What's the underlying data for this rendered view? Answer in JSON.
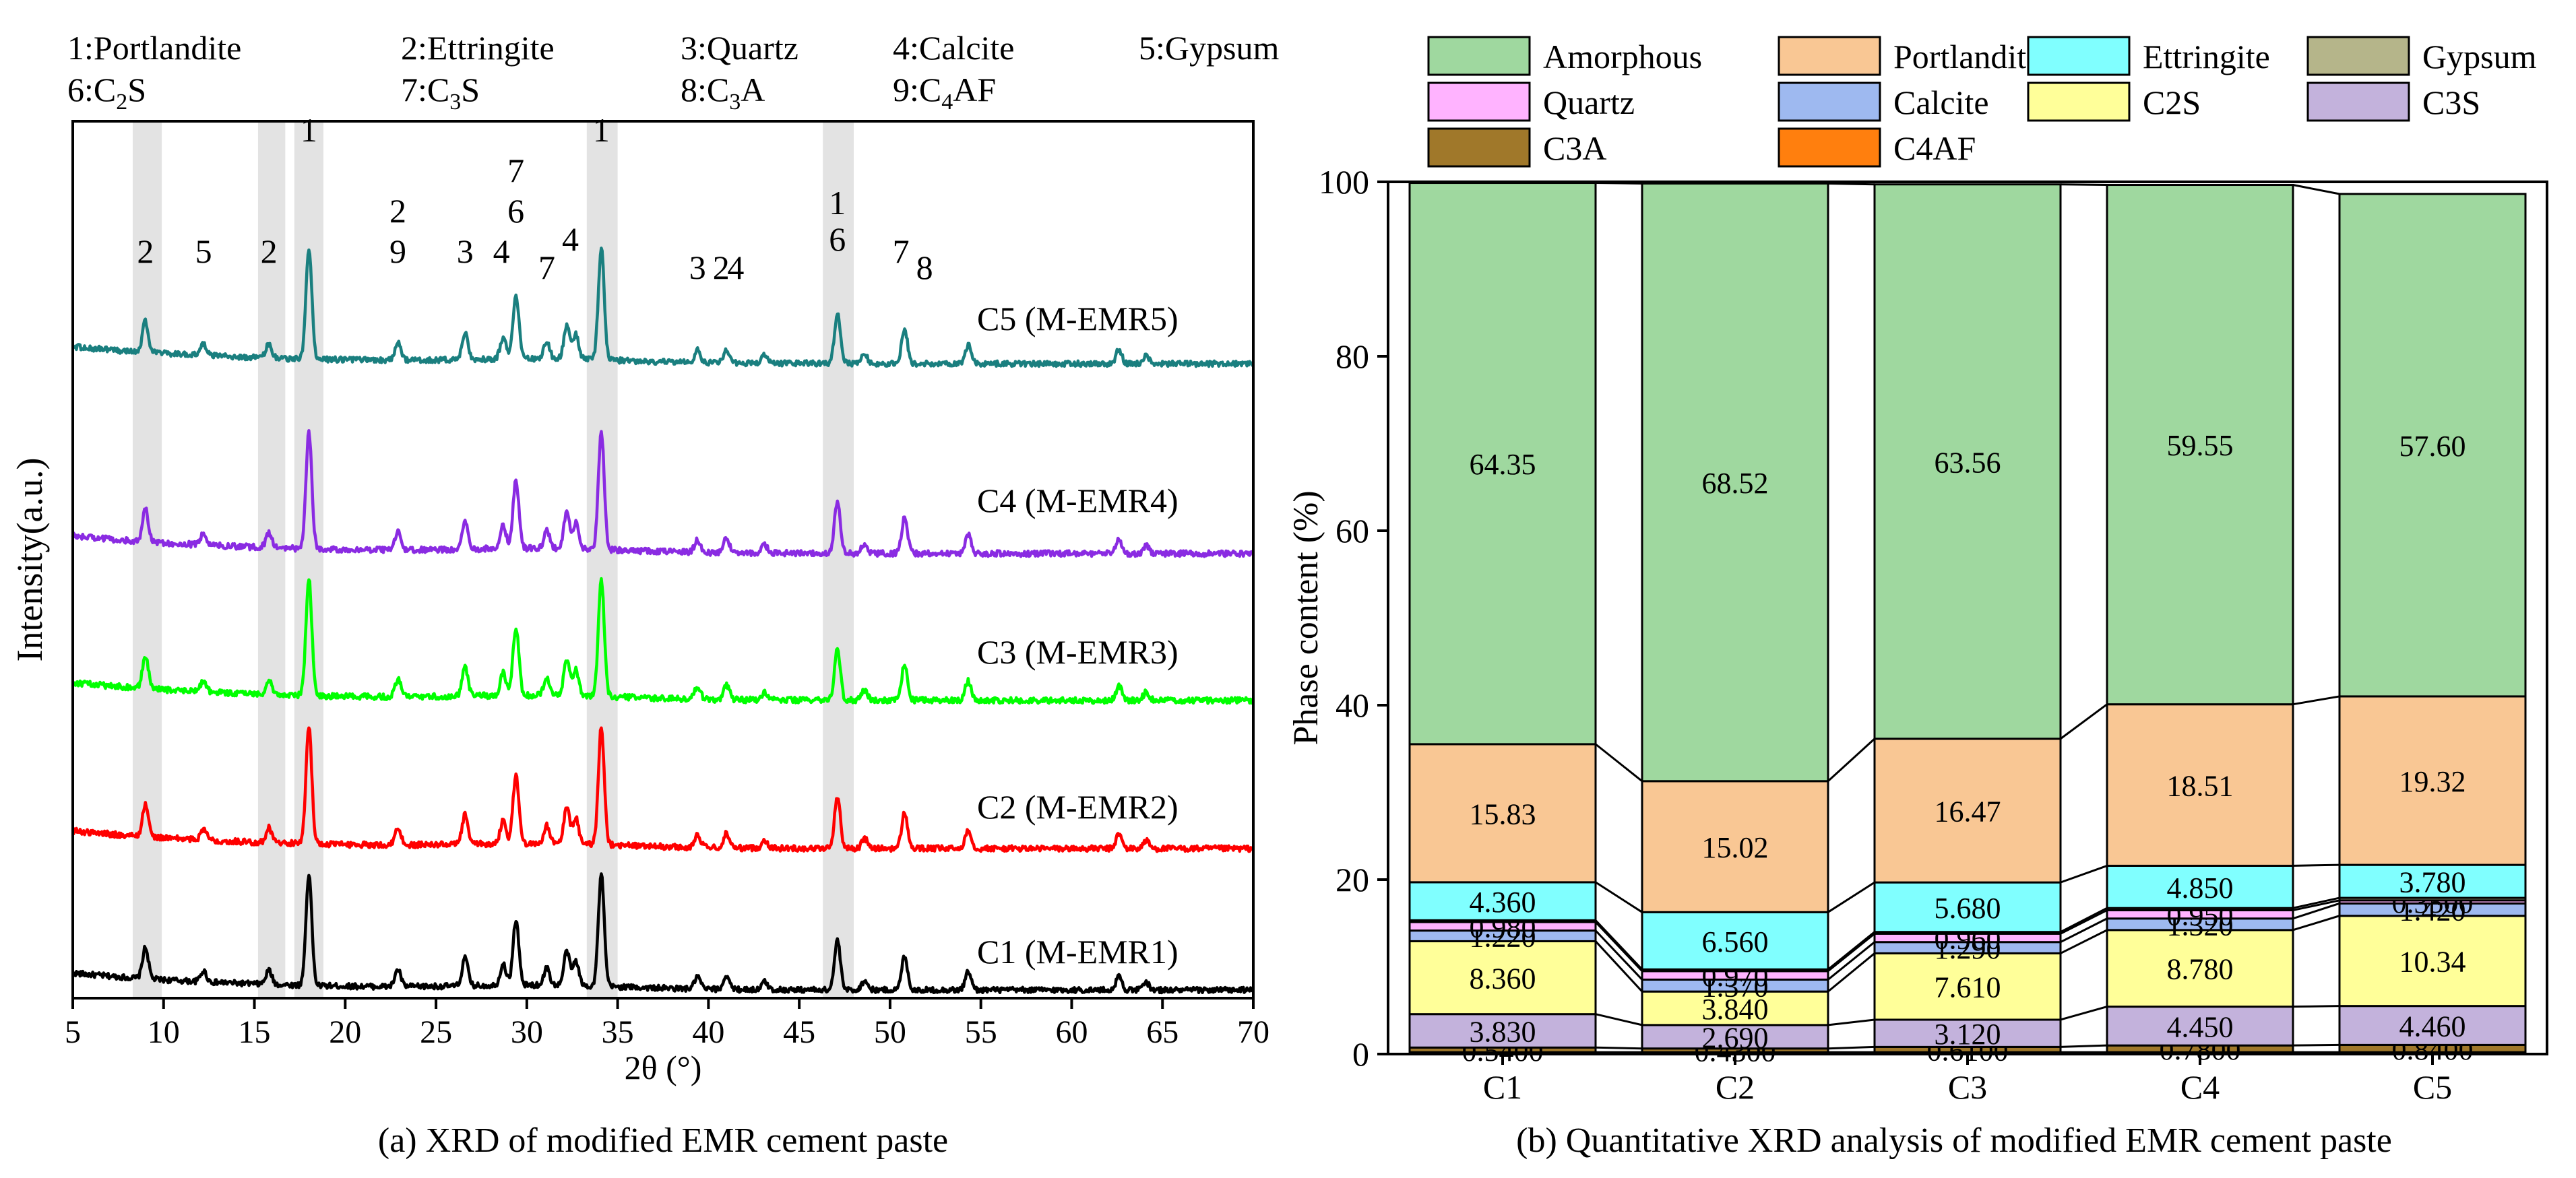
{
  "chart_data": [
    {
      "type": "line",
      "caption": "(a) XRD of modified EMR cement paste",
      "xlabel": "2θ (°)",
      "ylabel": "Intensity(a.u.)",
      "xlim": [
        5,
        70
      ],
      "xticks": [
        5,
        10,
        15,
        20,
        25,
        30,
        35,
        40,
        45,
        50,
        55,
        60,
        65,
        70
      ],
      "phase_legend": [
        {
          "num": "1",
          "sep": ":",
          "name": "Portlandite",
          "sub": "",
          "rest": ""
        },
        {
          "num": "2",
          "sep": ":",
          "name": "Ettringite",
          "sub": "",
          "rest": ""
        },
        {
          "num": "3",
          "sep": ":",
          "name": "Quartz",
          "sub": "",
          "rest": ""
        },
        {
          "num": "4",
          "sep": ":",
          "name": "Calcite",
          "sub": "",
          "rest": ""
        },
        {
          "num": "5",
          "sep": ":",
          "name": "Gypsum",
          "sub": "",
          "rest": ""
        },
        {
          "num": "6",
          "sep": ":",
          "name": "C",
          "sub": "2",
          "rest": "S"
        },
        {
          "num": "7",
          "sep": ":",
          "name": "C",
          "sub": "3",
          "rest": "S"
        },
        {
          "num": "8",
          "sep": ":",
          "name": "C",
          "sub": "3",
          "rest": "A"
        },
        {
          "num": "9",
          "sep": ":",
          "name": "C",
          "sub": "4",
          "rest": "AF"
        }
      ],
      "highlight_bands": [
        [
          8.3,
          9.9
        ],
        [
          15.2,
          16.7
        ],
        [
          17.2,
          18.8
        ],
        [
          33.3,
          35.0
        ],
        [
          46.3,
          48.0
        ]
      ],
      "peaks": [
        {
          "pos": 9.0,
          "h": 1.0
        },
        {
          "pos": 12.2,
          "h": 0.35
        },
        {
          "pos": 15.8,
          "h": 0.45
        },
        {
          "pos": 18.0,
          "h": 3.6
        },
        {
          "pos": 22.9,
          "h": 0.55
        },
        {
          "pos": 26.6,
          "h": 0.9
        },
        {
          "pos": 28.7,
          "h": 0.7
        },
        {
          "pos": 29.4,
          "h": 2.1
        },
        {
          "pos": 31.1,
          "h": 0.55
        },
        {
          "pos": 32.2,
          "h": 1.1
        },
        {
          "pos": 32.7,
          "h": 0.8
        },
        {
          "pos": 34.1,
          "h": 3.6
        },
        {
          "pos": 39.4,
          "h": 0.4
        },
        {
          "pos": 41.0,
          "h": 0.45
        },
        {
          "pos": 43.1,
          "h": 0.25
        },
        {
          "pos": 47.1,
          "h": 1.6
        },
        {
          "pos": 48.6,
          "h": 0.3
        },
        {
          "pos": 50.8,
          "h": 1.1
        },
        {
          "pos": 54.3,
          "h": 0.6
        },
        {
          "pos": 62.6,
          "h": 0.45
        },
        {
          "pos": 64.1,
          "h": 0.25
        }
      ],
      "series": [
        {
          "name": "C1 (M-EMR1)",
          "color": "#000000"
        },
        {
          "name": "C2 (M-EMR2)",
          "color": "#ff0000"
        },
        {
          "name": "C3 (M-EMR3)",
          "color": "#00ff00"
        },
        {
          "name": "C4 (M-EMR4)",
          "color": "#8a2be2"
        },
        {
          "name": "C5 (M-EMR5)",
          "color": "#1a7f7f"
        }
      ],
      "annotations": [
        {
          "text": "2",
          "x": 9.0,
          "tier": 1
        },
        {
          "text": "5",
          "x": 12.2,
          "tier": 1
        },
        {
          "text": "2",
          "x": 15.8,
          "tier": 1
        },
        {
          "text": "1",
          "x": 18.0,
          "tier": 4
        },
        {
          "text": "2",
          "x": 22.9,
          "tier": 2
        },
        {
          "text": "9",
          "x": 22.9,
          "tier": 1
        },
        {
          "text": "3",
          "x": 26.6,
          "tier": 1
        },
        {
          "text": "4",
          "x": 28.6,
          "tier": 1
        },
        {
          "text": "7",
          "x": 29.4,
          "tier": 3
        },
        {
          "text": "6",
          "x": 29.4,
          "tier": 2
        },
        {
          "text": "7",
          "x": 31.1,
          "tier": 0.6
        },
        {
          "text": "4",
          "x": 32.4,
          "tier": 1.3
        },
        {
          "text": "1",
          "x": 34.1,
          "tier": 4
        },
        {
          "text": "3",
          "x": 39.4,
          "tier": 0.6
        },
        {
          "text": "2",
          "x": 40.7,
          "tier": 0.6
        },
        {
          "text": "4",
          "x": 41.5,
          "tier": 0.6
        },
        {
          "text": "1",
          "x": 47.1,
          "tier": 2.2
        },
        {
          "text": "6",
          "x": 47.1,
          "tier": 1.3
        },
        {
          "text": "7",
          "x": 50.6,
          "tier": 1.0
        },
        {
          "text": "8",
          "x": 51.9,
          "tier": 0.6
        }
      ]
    },
    {
      "type": "bar",
      "stacked": true,
      "caption": "(b) Quantitative XRD analysis of modified EMR cement paste",
      "ylabel": "Phase content (%)",
      "ylim": [
        0,
        100
      ],
      "yticks": [
        0,
        20,
        40,
        60,
        80,
        100
      ],
      "categories": [
        "C1",
        "C2",
        "C3",
        "C4",
        "C5"
      ],
      "series": [
        {
          "name": "C4AF",
          "color": "#ff7f0e",
          "values": [
            0.21,
            0.21,
            0.21,
            0.21,
            0.21
          ],
          "labels": [
            "",
            "",
            "",
            "",
            ""
          ]
        },
        {
          "name": "C3A",
          "color": "#a0782a",
          "values": [
            0.54,
            0.43,
            0.61,
            0.78,
            0.84
          ],
          "labels": [
            "0.5400",
            "0.4300",
            "0.6100",
            "0.7800",
            "0.8400"
          ]
        },
        {
          "name": "C3S",
          "color": "#c3b2dc",
          "values": [
            3.83,
            2.69,
            3.12,
            4.45,
            4.46
          ],
          "labels": [
            "3.830",
            "2.690",
            "3.120",
            "4.450",
            "4.460"
          ]
        },
        {
          "name": "C2S",
          "color": "#ffff99",
          "values": [
            8.36,
            3.84,
            7.61,
            8.78,
            10.34
          ],
          "labels": [
            "8.360",
            "3.840",
            "7.610",
            "8.780",
            "10.34"
          ]
        },
        {
          "name": "Calcite",
          "color": "#9eb9f0",
          "values": [
            1.22,
            1.37,
            1.29,
            1.32,
            1.42
          ],
          "labels": [
            "1.220",
            "1.370",
            "1.290",
            "1.320",
            "1.420"
          ]
        },
        {
          "name": "Quartz",
          "color": "#ffb3ff",
          "values": [
            0.98,
            0.97,
            0.96,
            0.95,
            0.35
          ],
          "labels": [
            "0.980",
            "0.970",
            "0.960",
            "0.950",
            "0.3500"
          ]
        },
        {
          "name": "Gypsum",
          "color": "#b5b58a",
          "values": [
            0.2,
            0.2,
            0.2,
            0.25,
            0.29
          ],
          "labels": [
            "",
            "",
            "",
            "",
            ""
          ]
        },
        {
          "name": "Ettringite",
          "color": "#80ffff",
          "values": [
            4.36,
            6.56,
            5.68,
            4.85,
            3.78
          ],
          "labels": [
            "4.360",
            "6.560",
            "5.680",
            "4.850",
            "3.780"
          ]
        },
        {
          "name": "Portlandite",
          "color": "#f9c794",
          "values": [
            15.83,
            15.02,
            16.47,
            18.51,
            19.32
          ],
          "labels": [
            "15.83",
            "15.02",
            "16.47",
            "18.51",
            "19.32"
          ]
        },
        {
          "name": "Amorphous",
          "color": "#9fd89f",
          "values": [
            64.35,
            68.52,
            63.56,
            59.55,
            57.6
          ],
          "labels": [
            "64.35",
            "68.52",
            "63.56",
            "59.55",
            "57.60"
          ]
        }
      ],
      "legend_order": [
        "Amorphous",
        "Portlandite",
        "Ettringite",
        "Gypsum",
        "Quartz",
        "Calcite",
        "C2S",
        "C3S",
        "C3A",
        "C4AF"
      ]
    }
  ]
}
